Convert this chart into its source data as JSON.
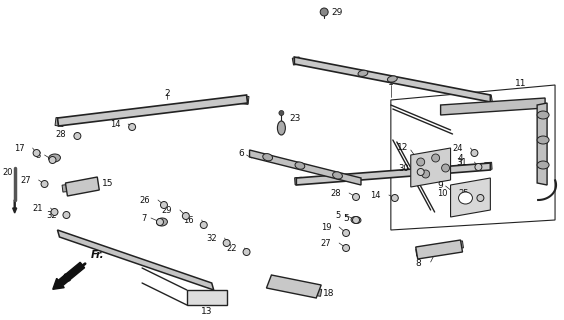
{
  "background_color": "#ffffff",
  "line_color": "#222222",
  "fig_width": 5.64,
  "fig_height": 3.2,
  "dpi": 100
}
